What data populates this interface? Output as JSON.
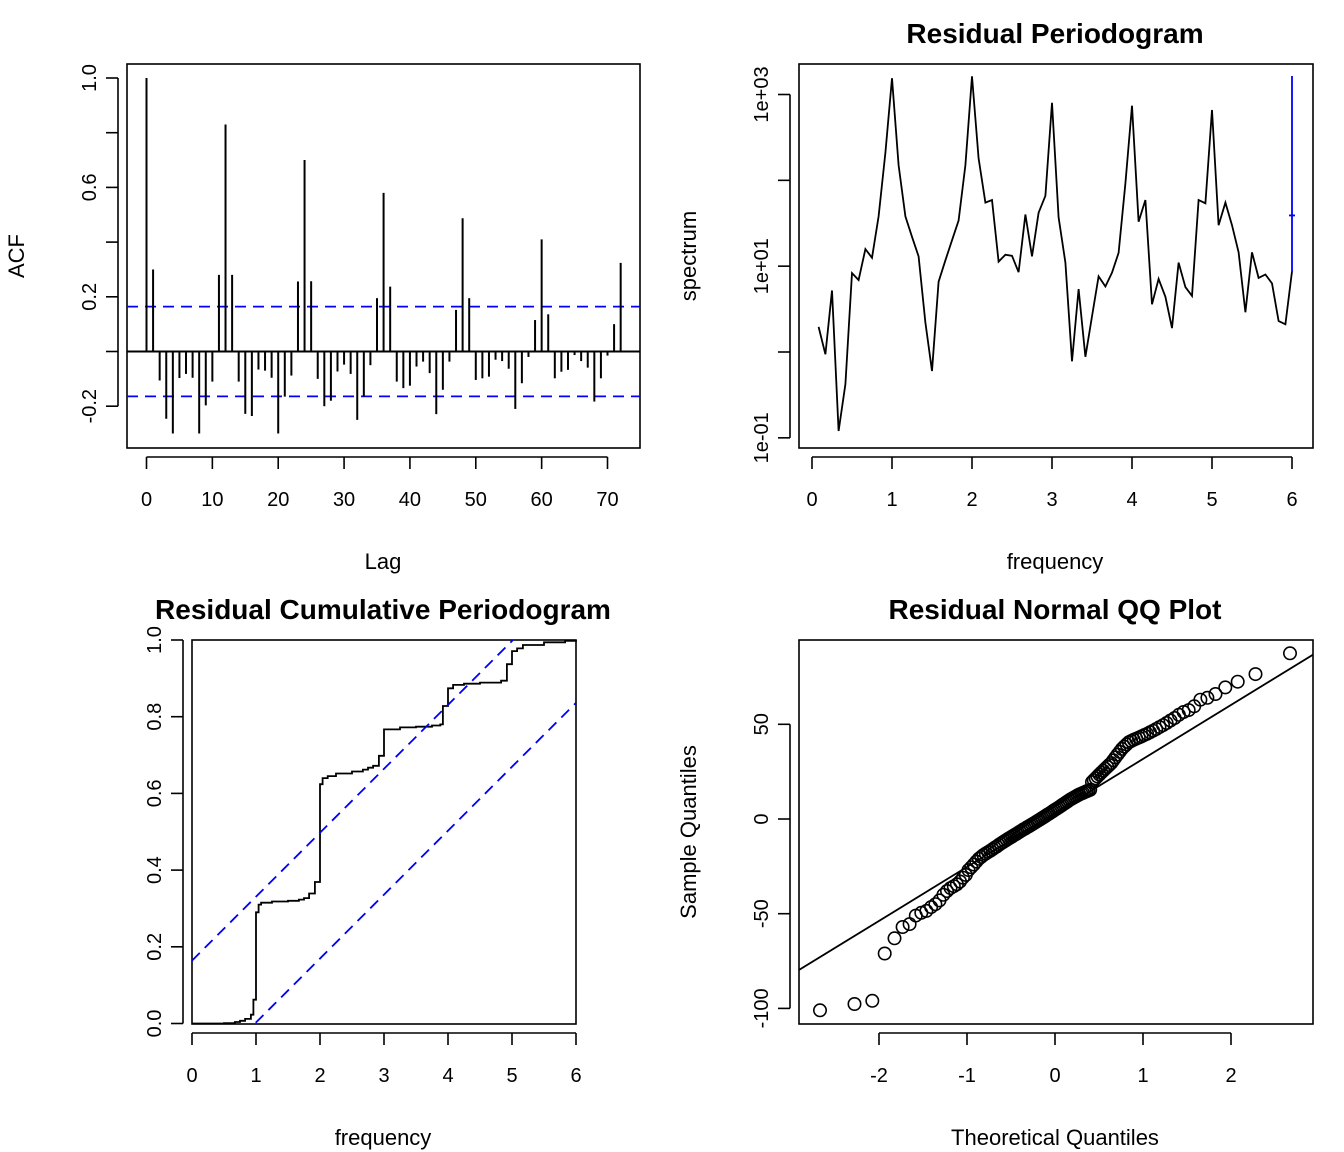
{
  "colors": {
    "line": "#000000",
    "reference": "#0000ff",
    "background": "#ffffff"
  },
  "chart_data": [
    {
      "id": "acf",
      "type": "bar",
      "title": "",
      "title_clipped": true,
      "xlabel": "Lag",
      "ylabel": "ACF",
      "xlim": [
        -3,
        75
      ],
      "ylim": [
        -0.35,
        1.05
      ],
      "xticks": [
        0,
        10,
        20,
        30,
        40,
        50,
        60,
        70
      ],
      "xtick_labels": [
        "0",
        "10",
        "20",
        "30",
        "40",
        "50",
        "60",
        "70"
      ],
      "yticks": [
        -0.2,
        0.0,
        0.2,
        0.4,
        0.6,
        0.8,
        1.0
      ],
      "ytick_labels": [
        "-0.2",
        "",
        "0.2",
        "",
        "0.6",
        "",
        "1.0"
      ],
      "confidence_bounds": [
        0.164,
        -0.164
      ],
      "lags": [
        0,
        1,
        2,
        3,
        4,
        5,
        6,
        7,
        8,
        9,
        10,
        11,
        12,
        13,
        14,
        15,
        16,
        17,
        18,
        19,
        20,
        21,
        22,
        23,
        24,
        25,
        26,
        27,
        28,
        29,
        30,
        31,
        32,
        33,
        34,
        35,
        36,
        37,
        38,
        39,
        40,
        41,
        42,
        43,
        44,
        45,
        46,
        47,
        48,
        49,
        50,
        51,
        52,
        53,
        54,
        55,
        56,
        57,
        58,
        59,
        60,
        61,
        62,
        63,
        64,
        65,
        66,
        67,
        68,
        69,
        70,
        71,
        72
      ],
      "values": [
        1.0,
        0.3,
        -0.106,
        -0.246,
        -0.3,
        -0.097,
        -0.082,
        -0.096,
        -0.3,
        -0.197,
        -0.11,
        0.28,
        0.83,
        0.28,
        -0.11,
        -0.228,
        -0.236,
        -0.066,
        -0.07,
        -0.096,
        -0.3,
        -0.165,
        -0.088,
        0.256,
        0.7,
        0.257,
        -0.1,
        -0.2,
        -0.18,
        -0.073,
        -0.048,
        -0.082,
        -0.25,
        -0.165,
        -0.05,
        0.195,
        0.58,
        0.237,
        -0.11,
        -0.134,
        -0.125,
        -0.055,
        -0.037,
        -0.079,
        -0.229,
        -0.14,
        -0.037,
        0.152,
        0.487,
        0.195,
        -0.104,
        -0.098,
        -0.092,
        -0.03,
        -0.035,
        -0.063,
        -0.21,
        -0.116,
        -0.02,
        0.115,
        0.41,
        0.136,
        -0.098,
        -0.074,
        -0.067,
        -0.013,
        -0.035,
        -0.059,
        -0.183,
        -0.098,
        -0.015,
        0.1,
        0.324
      ]
    },
    {
      "id": "periodogram",
      "type": "line",
      "title": "Residual Periodogram",
      "xlabel": "frequency",
      "ylabel": "spectrum",
      "y_scale": "log10",
      "xlim": [
        -0.1,
        6.3
      ],
      "ylim_log10": [
        -1.2,
        3.35
      ],
      "xticks": [
        0,
        1,
        2,
        3,
        4,
        5,
        6
      ],
      "xtick_labels": [
        "0",
        "1",
        "2",
        "3",
        "4",
        "5",
        "6"
      ],
      "yticks_log10": [
        -1,
        0,
        1,
        2,
        3
      ],
      "ytick_labels": [
        "1e-01",
        "",
        "1e+01",
        "",
        "1e+03"
      ],
      "frequency": [
        0.083,
        0.167,
        0.25,
        0.333,
        0.417,
        0.5,
        0.583,
        0.667,
        0.75,
        0.833,
        0.917,
        1.0,
        1.083,
        1.167,
        1.25,
        1.333,
        1.417,
        1.5,
        1.583,
        1.667,
        1.75,
        1.833,
        1.917,
        2.0,
        2.083,
        2.167,
        2.25,
        2.333,
        2.417,
        2.5,
        2.583,
        2.667,
        2.75,
        2.833,
        2.917,
        3.0,
        3.083,
        3.167,
        3.25,
        3.333,
        3.417,
        3.5,
        3.583,
        3.667,
        3.75,
        3.833,
        3.917,
        4.0,
        4.083,
        4.167,
        4.25,
        4.333,
        4.417,
        4.5,
        4.583,
        4.667,
        4.75,
        4.833,
        4.917,
        5.0,
        5.083,
        5.167,
        5.25,
        5.333,
        5.417,
        5.5,
        5.583,
        5.667,
        5.75,
        5.833,
        5.917,
        6.0
      ],
      "spectrum": [
        1.96,
        0.94,
        5.2,
        0.12,
        0.42,
        8.3,
        6.9,
        15.8,
        12.5,
        38,
        210,
        1550,
        150,
        38,
        22,
        13,
        2.2,
        0.6,
        6.6,
        11.7,
        20,
        34,
        150,
        1630,
        180,
        55,
        59,
        11.3,
        13.6,
        13.2,
        8.5,
        40,
        13,
        42,
        66,
        800,
        37,
        11.0,
        0.78,
        5.4,
        0.88,
        2.6,
        7.6,
        5.8,
        8.4,
        14.3,
        92,
        740,
        33,
        59,
        3.6,
        7.1,
        4.4,
        1.9,
        11.0,
        5.7,
        4.5,
        59,
        54,
        660,
        30,
        55,
        30,
        14.5,
        2.9,
        14.5,
        7.3,
        8.0,
        6.3,
        2.3,
        2.1,
        8.7
      ],
      "bandwidth_bar": {
        "frequency": 6.0,
        "upper": 1640,
        "center": 39,
        "lower": 8.6
      }
    },
    {
      "id": "cumulative_periodogram",
      "type": "line",
      "title": "Residual Cumulative Periodogram",
      "xlabel": "frequency",
      "ylabel": "",
      "xlim": [
        0,
        6
      ],
      "ylim": [
        0,
        1
      ],
      "xticks": [
        0,
        1,
        2,
        3,
        4,
        5,
        6
      ],
      "xtick_labels": [
        "0",
        "1",
        "2",
        "3",
        "4",
        "5",
        "6"
      ],
      "yticks": [
        0.0,
        0.2,
        0.4,
        0.6,
        0.8,
        1.0
      ],
      "ytick_labels": [
        "0.0",
        "0.2",
        "0.4",
        "0.6",
        "0.8",
        "1.0"
      ],
      "steps": [
        [
          0.0,
          0.0
        ],
        [
          0.5,
          0.001
        ],
        [
          0.67,
          0.004
        ],
        [
          0.75,
          0.007
        ],
        [
          0.83,
          0.012
        ],
        [
          0.92,
          0.023
        ],
        [
          0.96,
          0.062
        ],
        [
          1.0,
          0.29
        ],
        [
          1.04,
          0.31
        ],
        [
          1.08,
          0.315
        ],
        [
          1.25,
          0.318
        ],
        [
          1.5,
          0.32
        ],
        [
          1.67,
          0.323
        ],
        [
          1.75,
          0.327
        ],
        [
          1.83,
          0.339
        ],
        [
          1.92,
          0.369
        ],
        [
          2.0,
          0.624
        ],
        [
          2.04,
          0.64
        ],
        [
          2.12,
          0.645
        ],
        [
          2.25,
          0.652
        ],
        [
          2.5,
          0.657
        ],
        [
          2.67,
          0.662
        ],
        [
          2.75,
          0.667
        ],
        [
          2.83,
          0.672
        ],
        [
          2.92,
          0.698
        ],
        [
          3.0,
          0.767
        ],
        [
          3.25,
          0.772
        ],
        [
          3.5,
          0.774
        ],
        [
          3.75,
          0.777
        ],
        [
          3.88,
          0.78
        ],
        [
          3.92,
          0.828
        ],
        [
          4.0,
          0.874
        ],
        [
          4.08,
          0.883
        ],
        [
          4.25,
          0.886
        ],
        [
          4.5,
          0.889
        ],
        [
          4.83,
          0.894
        ],
        [
          4.92,
          0.937
        ],
        [
          5.0,
          0.971
        ],
        [
          5.08,
          0.978
        ],
        [
          5.17,
          0.987
        ],
        [
          5.5,
          0.994
        ],
        [
          5.83,
          0.998
        ],
        [
          6.0,
          1.0
        ]
      ],
      "bounds": {
        "upper_intercept": 0.164,
        "lower_intercept": -0.164,
        "slope_per_unit": 0.1667
      }
    },
    {
      "id": "qq",
      "type": "scatter",
      "title": "Residual Normal QQ Plot",
      "xlabel": "Theoretical Quantiles",
      "ylabel": "Sample Quantiles",
      "xlim": [
        -2.9,
        2.9
      ],
      "ylim": [
        -106,
        93
      ],
      "xticks": [
        -2,
        -1,
        0,
        1,
        2
      ],
      "xtick_labels": [
        "-2",
        "-1",
        "0",
        "1",
        "2"
      ],
      "yticks": [
        -100,
        -50,
        0,
        50
      ],
      "ytick_labels": [
        "-100",
        "-50",
        "0",
        "50"
      ],
      "reference_line": {
        "intercept": 3.2,
        "slope": 28.5
      },
      "sample_quantiles": [
        -101,
        -97.7,
        -96,
        -71,
        -63,
        -57,
        -55.5,
        -51,
        -49.5,
        -48.5,
        -46.5,
        -45,
        -43,
        -40,
        -38,
        -36.5,
        -35.5,
        -34.5,
        -33,
        -31,
        -29.5,
        -27,
        -25.5,
        -24,
        -22.5,
        -21,
        -20,
        -19,
        -18.2,
        -17.5,
        -16.8,
        -16,
        -15.2,
        -14.5,
        -13.7,
        -13,
        -12.3,
        -11.6,
        -11,
        -10.3,
        -9.7,
        -9.1,
        -8.5,
        -7.9,
        -7.3,
        -6.7,
        -6.1,
        -5.5,
        -5,
        -4.4,
        -3.9,
        -3.3,
        -2.8,
        -2.2,
        -1.7,
        -1.1,
        -0.6,
        0,
        0.6,
        1.1,
        1.7,
        2.3,
        2.8,
        3.4,
        4,
        4.6,
        5.2,
        5.7,
        6.3,
        6.9,
        7.5,
        8.1,
        8.7,
        9.3,
        9.9,
        10.5,
        11,
        11.5,
        12,
        12.5,
        13,
        13.4,
        13.8,
        14.2,
        14.6,
        15,
        15.4,
        19.5,
        20.5,
        21.5,
        22.5,
        23.5,
        24.5,
        25.5,
        26.5,
        27.5,
        28.5,
        29.5,
        31,
        32.5,
        34,
        35.5,
        37,
        38.2,
        39.4,
        40.5,
        41.2,
        41.8,
        42.4,
        43,
        43.6,
        44.3,
        45,
        45.8,
        46.6,
        47.5,
        48.5,
        49.5,
        50.7,
        52,
        53.3,
        55,
        56.5,
        57.5,
        59.5,
        63,
        64,
        66,
        69.5,
        72.5,
        76.5,
        87.5
      ]
    }
  ]
}
